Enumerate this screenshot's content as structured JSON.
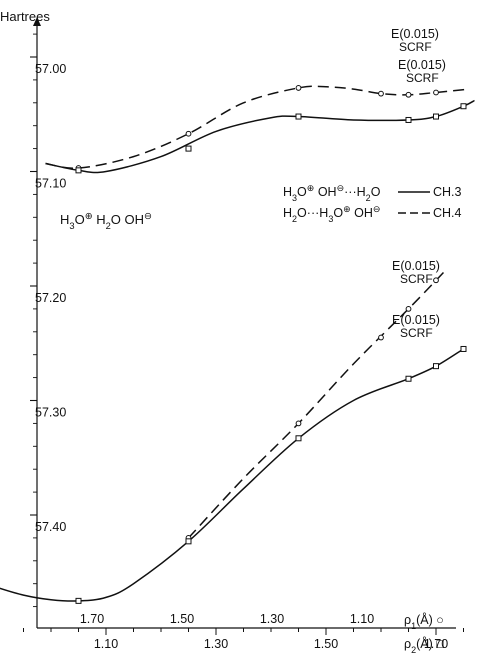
{
  "chart_data": {
    "type": "line",
    "ylabel": "Hartrees",
    "y_tick_labels": [
      "57.00",
      "57.10",
      "57.20",
      "57.30",
      "57.40"
    ],
    "y_ticks": [
      57.0,
      57.1,
      57.2,
      57.3,
      57.4
    ],
    "ylim_top": 56.96,
    "ylim_bottom": 57.52,
    "y_inverted": true,
    "x_rho2": {
      "label": "ρ2(Å)",
      "marker_symbol": "□",
      "ticks": [
        1.1,
        1.3,
        1.5,
        1.7
      ],
      "tick_labels": [
        "1.10",
        "1.30",
        "1.50",
        "1.70"
      ],
      "range": [
        0.9,
        1.79
      ]
    },
    "x_rho1": {
      "label": "ρ1(Å)",
      "marker_symbol": "○",
      "ticks": [
        1.7,
        1.5,
        1.3,
        1.1
      ],
      "tick_labels": [
        "1.70",
        "1.50",
        "1.30",
        "1.10"
      ],
      "range": [
        1.9,
        1.01
      ]
    },
    "reactant_label": "H3O⊕ H2O OH⊖",
    "legend": [
      {
        "text": "H3O⊕ OH⊖···H2O",
        "line_text": "CH.3",
        "style": "solid"
      },
      {
        "text": "H2O···H3O⊕ OH⊖",
        "line_text": "CH.4",
        "style": "dashed"
      }
    ],
    "series": [
      {
        "name": "E(0.015) SCRF",
        "style": "dashed",
        "marker": "circle",
        "label_lines": [
          "E(0.015)",
          "SCRF"
        ],
        "x": [
          1.05,
          1.25,
          1.45,
          1.6,
          1.65,
          1.7
        ],
        "y": [
          57.097,
          57.067,
          57.027,
          57.032,
          57.033,
          57.031
        ],
        "curve_x": [
          0.99,
          1.05,
          1.15,
          1.25,
          1.35,
          1.45,
          1.5,
          1.55,
          1.6,
          1.65,
          1.7,
          1.76
        ],
        "curve_y": [
          57.093,
          57.097,
          57.087,
          57.067,
          57.04,
          57.027,
          57.026,
          57.028,
          57.032,
          57.033,
          57.031,
          57.028
        ]
      },
      {
        "name": "E(0.015) SCRF",
        "style": "solid",
        "marker": "square",
        "label_lines": [
          "E(0.015)",
          "SCRF"
        ],
        "x": [
          1.05,
          1.25,
          1.45,
          1.65,
          1.7,
          1.75
        ],
        "y": [
          57.099,
          57.08,
          57.052,
          57.055,
          57.052,
          57.043
        ],
        "curve_x": [
          0.99,
          1.05,
          1.1,
          1.2,
          1.3,
          1.4,
          1.45,
          1.55,
          1.65,
          1.7,
          1.75,
          1.77
        ],
        "curve_y": [
          57.093,
          57.099,
          57.1,
          57.087,
          57.065,
          57.053,
          57.052,
          57.055,
          57.055,
          57.052,
          57.043,
          57.038
        ]
      },
      {
        "name": "E(0.015) SCRF",
        "style": "dashed",
        "marker": "circle",
        "label_lines": [
          "E(0.015)",
          "SCRF"
        ],
        "x": [
          1.25,
          1.45,
          1.6,
          1.65,
          1.7
        ],
        "y": [
          57.42,
          57.32,
          57.245,
          57.22,
          57.195
        ],
        "curve_x": [
          1.25,
          1.35,
          1.45,
          1.55,
          1.65,
          1.72
        ],
        "curve_y": [
          57.42,
          57.368,
          57.32,
          57.268,
          57.22,
          57.185
        ]
      },
      {
        "name": "E(0.015) SCRF",
        "style": "solid",
        "marker": "square",
        "label_lines": [
          "E(0.015)",
          "SCRF"
        ],
        "x": [
          1.05,
          1.25,
          1.45,
          1.65,
          1.7,
          1.75
        ],
        "y": [
          57.475,
          57.423,
          57.333,
          57.281,
          57.27,
          57.255
        ],
        "curve_x": [
          0.9,
          0.95,
          1.0,
          1.05,
          1.1,
          1.15,
          1.25,
          1.35,
          1.45,
          1.55,
          1.65,
          1.7,
          1.75
        ],
        "curve_y": [
          57.463,
          57.47,
          57.474,
          57.475,
          57.472,
          57.46,
          57.423,
          57.377,
          57.333,
          57.3,
          57.281,
          57.27,
          57.255
        ]
      }
    ]
  }
}
